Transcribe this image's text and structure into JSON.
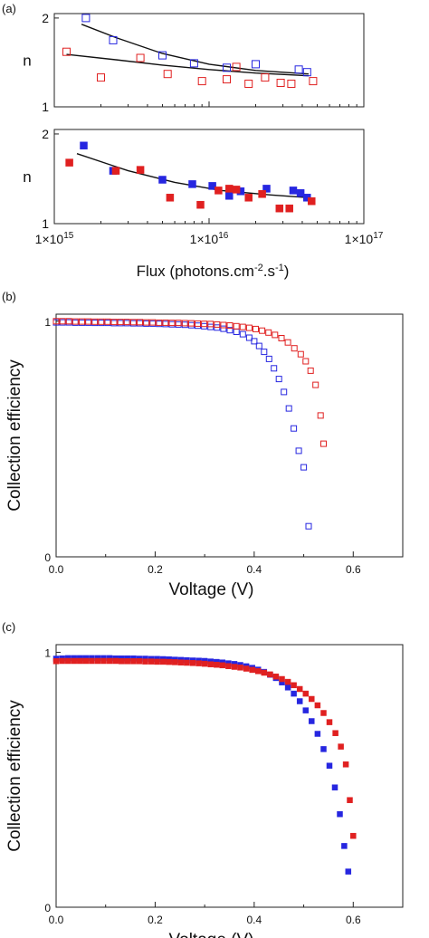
{
  "colors": {
    "blue": "#2626e0",
    "red": "#e02020",
    "fit": "#111111"
  },
  "panels": [
    {
      "label": "(a)"
    },
    {
      "label": "(b)"
    },
    {
      "label": "(c)"
    }
  ],
  "chart_data": [
    {
      "id": "a-top",
      "type": "scatter",
      "xscale": "log",
      "xlim": [
        1000000000000000.0,
        1e+17
      ],
      "ylim": [
        1,
        2.05
      ],
      "ylabel": "n",
      "yticks": [
        "1",
        "2"
      ],
      "marker": "open-square",
      "series": [
        {
          "color": "#2626e0",
          "x": [
            1600000000000000.0,
            2400000000000000.0,
            5000000000000000.0,
            8000000000000000.0,
            1.3e+16,
            2e+16,
            3.8e+16,
            4.3e+16
          ],
          "y": [
            2.0,
            1.75,
            1.58,
            1.49,
            1.44,
            1.48,
            1.42,
            1.39
          ]
        },
        {
          "color": "#e02020",
          "x": [
            1200000000000000.0,
            2000000000000000.0,
            3600000000000000.0,
            5400000000000000.0,
            9000000000000000.0,
            1.3e+16,
            1.5e+16,
            1.8e+16,
            2.3e+16,
            2.9e+16,
            3.4e+16,
            4.7e+16
          ],
          "y": [
            1.62,
            1.33,
            1.55,
            1.37,
            1.29,
            1.31,
            1.45,
            1.26,
            1.33,
            1.27,
            1.26,
            1.29
          ]
        }
      ],
      "fits": [
        {
          "x": [
            1500000000000000.0,
            2500000000000000.0,
            5000000000000000.0,
            1e+16,
            2e+16,
            4.4e+16
          ],
          "y": [
            1.93,
            1.78,
            1.6,
            1.48,
            1.41,
            1.37
          ]
        },
        {
          "x": [
            1200000000000000.0,
            2500000000000000.0,
            5000000000000000.0,
            1e+16,
            2e+16,
            4.4e+16
          ],
          "y": [
            1.59,
            1.53,
            1.47,
            1.42,
            1.38,
            1.35
          ]
        }
      ]
    },
    {
      "id": "a-bottom",
      "type": "scatter",
      "xscale": "log",
      "xlim": [
        1000000000000000.0,
        1e+17
      ],
      "ylim": [
        1,
        2.05
      ],
      "ylabel": "n",
      "xlabel": "Flux (photons.cm-2.s-1)",
      "xlabel_parts": [
        "Flux (photons.cm",
        "-2",
        ".s",
        "-1",
        ")"
      ],
      "yticks": [
        "1",
        "2"
      ],
      "xticks": [
        {
          "v": 1000000000000000.0,
          "base": "1×10",
          "exp": "15"
        },
        {
          "v": 1e+16,
          "base": "1×10",
          "exp": "16"
        },
        {
          "v": 1e+17,
          "base": "1×10",
          "exp": "17"
        }
      ],
      "marker": "filled-square",
      "series": [
        {
          "color": "#2626e0",
          "x": [
            1550000000000000.0,
            2400000000000000.0,
            5000000000000000.0,
            7800000000000000.0,
            1.05e+16,
            1.35e+16,
            1.6e+16,
            2.35e+16,
            3.5e+16,
            3.9e+16,
            4.3e+16
          ],
          "y": [
            1.87,
            1.59,
            1.49,
            1.44,
            1.42,
            1.31,
            1.36,
            1.39,
            1.37,
            1.34,
            1.29
          ]
        },
        {
          "color": "#e02020",
          "x": [
            1250000000000000.0,
            2500000000000000.0,
            3600000000000000.0,
            5600000000000000.0,
            8800000000000000.0,
            1.15e+16,
            1.35e+16,
            1.5e+16,
            1.8e+16,
            2.2e+16,
            2.85e+16,
            3.3e+16,
            4.6e+16
          ],
          "y": [
            1.68,
            1.59,
            1.6,
            1.29,
            1.21,
            1.37,
            1.39,
            1.38,
            1.29,
            1.33,
            1.17,
            1.17,
            1.25
          ]
        }
      ],
      "fits": [
        {
          "x": [
            1400000000000000.0,
            3000000000000000.0,
            6000000000000000.0,
            1.2e+16,
            2.5e+16,
            4.4e+16
          ],
          "y": [
            1.78,
            1.59,
            1.46,
            1.37,
            1.32,
            1.29
          ]
        }
      ]
    },
    {
      "id": "b",
      "type": "scatter",
      "xlim": [
        0,
        0.7
      ],
      "ylim": [
        0,
        1.03
      ],
      "xlabel": "Voltage (V)",
      "ylabel": "Collection efficiency",
      "xticks": [
        "0.0",
        "0.2",
        "0.4",
        "0.6"
      ],
      "yticks": [
        "0",
        "1"
      ],
      "marker": "open-square",
      "series": [
        {
          "color": "#2626e0",
          "x": [
            0.0,
            0.013,
            0.026,
            0.039,
            0.052,
            0.065,
            0.078,
            0.091,
            0.104,
            0.117,
            0.13,
            0.143,
            0.156,
            0.169,
            0.182,
            0.195,
            0.208,
            0.221,
            0.234,
            0.247,
            0.26,
            0.273,
            0.286,
            0.299,
            0.312,
            0.325,
            0.338,
            0.351,
            0.364,
            0.377,
            0.39,
            0.4,
            0.41,
            0.42,
            0.43,
            0.44,
            0.45,
            0.46,
            0.47,
            0.48,
            0.49,
            0.5,
            0.51
          ],
          "y": [
            0.995,
            0.995,
            0.995,
            0.994,
            0.994,
            0.994,
            0.993,
            0.993,
            0.993,
            0.992,
            0.992,
            0.992,
            0.991,
            0.991,
            0.99,
            0.99,
            0.989,
            0.988,
            0.987,
            0.986,
            0.985,
            0.983,
            0.981,
            0.979,
            0.976,
            0.973,
            0.968,
            0.962,
            0.955,
            0.945,
            0.93,
            0.915,
            0.895,
            0.87,
            0.84,
            0.8,
            0.755,
            0.7,
            0.63,
            0.545,
            0.45,
            0.38,
            0.13
          ]
        },
        {
          "color": "#e02020",
          "x": [
            0.0,
            0.013,
            0.026,
            0.039,
            0.052,
            0.065,
            0.078,
            0.091,
            0.104,
            0.117,
            0.13,
            0.143,
            0.156,
            0.169,
            0.182,
            0.195,
            0.208,
            0.221,
            0.234,
            0.247,
            0.26,
            0.273,
            0.286,
            0.299,
            0.312,
            0.325,
            0.338,
            0.351,
            0.364,
            0.377,
            0.39,
            0.403,
            0.416,
            0.429,
            0.442,
            0.455,
            0.468,
            0.481,
            0.494,
            0.504,
            0.514,
            0.524,
            0.534,
            0.54
          ],
          "y": [
            1.0,
            1.0,
            1.0,
            0.999,
            0.999,
            0.999,
            0.998,
            0.998,
            0.998,
            0.997,
            0.997,
            0.997,
            0.996,
            0.996,
            0.995,
            0.995,
            0.994,
            0.994,
            0.993,
            0.993,
            0.992,
            0.991,
            0.99,
            0.989,
            0.988,
            0.986,
            0.984,
            0.982,
            0.979,
            0.976,
            0.972,
            0.967,
            0.96,
            0.952,
            0.942,
            0.928,
            0.91,
            0.885,
            0.86,
            0.83,
            0.79,
            0.73,
            0.6,
            0.48
          ]
        }
      ]
    },
    {
      "id": "c",
      "type": "scatter",
      "xlim": [
        0,
        0.7
      ],
      "ylim": [
        0,
        1.03
      ],
      "xlabel": "Voltage (V)",
      "ylabel": "Collection efficiency",
      "xticks": [
        "0.0",
        "0.2",
        "0.4",
        "0.6"
      ],
      "yticks": [
        "0",
        "1"
      ],
      "marker": "filled-square",
      "series": [
        {
          "color": "#2626e0",
          "x": [
            0.0,
            0.012,
            0.024,
            0.036,
            0.048,
            0.06,
            0.072,
            0.084,
            0.096,
            0.108,
            0.12,
            0.132,
            0.144,
            0.156,
            0.168,
            0.18,
            0.192,
            0.204,
            0.216,
            0.228,
            0.24,
            0.252,
            0.264,
            0.276,
            0.288,
            0.3,
            0.312,
            0.324,
            0.336,
            0.348,
            0.36,
            0.372,
            0.384,
            0.396,
            0.408,
            0.42,
            0.432,
            0.444,
            0.456,
            0.468,
            0.48,
            0.492,
            0.504,
            0.516,
            0.528,
            0.54,
            0.552,
            0.563,
            0.573,
            0.582,
            0.59
          ],
          "y": [
            0.975,
            0.976,
            0.977,
            0.977,
            0.977,
            0.977,
            0.977,
            0.977,
            0.977,
            0.977,
            0.976,
            0.976,
            0.976,
            0.976,
            0.975,
            0.975,
            0.974,
            0.974,
            0.973,
            0.972,
            0.971,
            0.97,
            0.969,
            0.968,
            0.967,
            0.966,
            0.964,
            0.962,
            0.96,
            0.957,
            0.954,
            0.95,
            0.945,
            0.939,
            0.932,
            0.923,
            0.912,
            0.899,
            0.882,
            0.862,
            0.838,
            0.808,
            0.772,
            0.73,
            0.68,
            0.62,
            0.555,
            0.47,
            0.365,
            0.24,
            0.14
          ]
        },
        {
          "color": "#e02020",
          "x": [
            0.0,
            0.012,
            0.024,
            0.036,
            0.048,
            0.06,
            0.072,
            0.084,
            0.096,
            0.108,
            0.12,
            0.132,
            0.144,
            0.156,
            0.168,
            0.18,
            0.192,
            0.204,
            0.216,
            0.228,
            0.24,
            0.252,
            0.264,
            0.276,
            0.288,
            0.3,
            0.312,
            0.324,
            0.336,
            0.348,
            0.36,
            0.372,
            0.384,
            0.396,
            0.408,
            0.42,
            0.432,
            0.444,
            0.456,
            0.468,
            0.48,
            0.492,
            0.504,
            0.516,
            0.528,
            0.54,
            0.552,
            0.564,
            0.575,
            0.585,
            0.593,
            0.6
          ],
          "y": [
            0.965,
            0.966,
            0.966,
            0.966,
            0.966,
            0.966,
            0.966,
            0.966,
            0.966,
            0.966,
            0.966,
            0.965,
            0.965,
            0.965,
            0.965,
            0.964,
            0.964,
            0.963,
            0.963,
            0.962,
            0.961,
            0.96,
            0.959,
            0.958,
            0.957,
            0.955,
            0.953,
            0.951,
            0.949,
            0.946,
            0.943,
            0.94,
            0.936,
            0.931,
            0.926,
            0.92,
            0.913,
            0.905,
            0.895,
            0.884,
            0.871,
            0.856,
            0.838,
            0.817,
            0.792,
            0.762,
            0.726,
            0.683,
            0.63,
            0.56,
            0.42,
            0.28
          ]
        }
      ]
    }
  ]
}
